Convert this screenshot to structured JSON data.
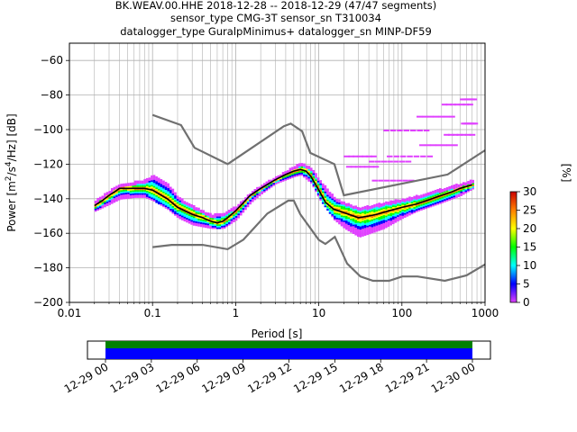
{
  "title_lines": [
    "BK.WEAV.00.HHE   2018-12-28 -- 2018-12-29  (47/47 segments)",
    "sensor_type CMG-3T sensor_sn T310034",
    "datalogger_type GuralpMinimus+ datalogger_sn MINP-DF59"
  ],
  "chart_data": {
    "type": "heatmap",
    "xlabel": "Period [s]",
    "ylabel": "Power [m²/s⁴/Hz] [dB]",
    "xscale": "log",
    "xlim": [
      0.01,
      1000
    ],
    "ylim": [
      -200,
      -50
    ],
    "x_tick_labels": [
      "0.01",
      "0.1",
      "1",
      "10",
      "100",
      "1000"
    ],
    "y_ticks": [
      -200,
      -180,
      -160,
      -140,
      -120,
      -100,
      -80,
      -60
    ],
    "grid": true,
    "colorbar": {
      "label": "[%]",
      "range": [
        0,
        30
      ],
      "ticks": [
        0,
        5,
        10,
        15,
        20,
        25,
        30
      ],
      "colors": [
        "#ffffff",
        "#e040ff",
        "#0000ff",
        "#00ffff",
        "#00ff00",
        "#ffff00",
        "#ff8000",
        "#cc0000"
      ]
    },
    "noise_models": {
      "color": "#707070",
      "high": {
        "x": [
          0.1,
          0.22,
          0.32,
          0.8,
          3.8,
          4.6,
          6.3,
          7.9,
          15.4,
          20,
          354.8,
          1000
        ],
        "y": [
          -91.5,
          -97.4,
          -110.5,
          -120,
          -98,
          -96.5,
          -101,
          -113.5,
          -120,
          -138,
          -126,
          -112
        ]
      },
      "low": {
        "x": [
          0.1,
          0.17,
          0.4,
          0.8,
          1.24,
          2.4,
          4.3,
          5,
          6,
          10,
          12,
          15.6,
          21.9,
          31.6,
          45,
          70,
          101,
          154,
          328,
          600,
          1000
        ],
        "y": [
          -168,
          -166.7,
          -166.7,
          -169.2,
          -163.7,
          -148.6,
          -141.1,
          -141.1,
          -149,
          -163.8,
          -166.2,
          -162.1,
          -177.5,
          -185,
          -187.5,
          -187.5,
          -185,
          -185,
          -187.5,
          -184.4,
          -178
        ]
      }
    },
    "mode_curve": {
      "color": "#000000",
      "x": [
        0.02,
        0.025,
        0.03,
        0.035,
        0.04,
        0.05,
        0.06,
        0.08,
        0.1,
        0.15,
        0.2,
        0.3,
        0.4,
        0.5,
        0.6,
        0.7,
        0.8,
        1,
        1.2,
        1.5,
        2,
        3,
        4,
        5,
        6,
        7,
        8,
        10,
        12,
        15,
        20,
        30,
        40,
        50,
        70,
        100,
        150,
        200,
        300,
        400,
        500,
        700
      ],
      "y": [
        -144,
        -141,
        -138,
        -136,
        -134,
        -134,
        -134,
        -134,
        -135,
        -140,
        -145,
        -149,
        -151,
        -153,
        -154,
        -153,
        -151,
        -147,
        -143,
        -138,
        -134,
        -129,
        -126,
        -124,
        -123,
        -124,
        -127,
        -135,
        -142,
        -146,
        -148,
        -151,
        -150,
        -149,
        -147,
        -145,
        -143,
        -141,
        -138,
        -136,
        -134,
        -132
      ]
    },
    "density_band": {
      "x": [
        0.02,
        0.03,
        0.04,
        0.06,
        0.08,
        0.1,
        0.15,
        0.2,
        0.3,
        0.5,
        0.7,
        1,
        1.5,
        2,
        3,
        5,
        6,
        8,
        10,
        15,
        20,
        30,
        40,
        60,
        100,
        150,
        200,
        300,
        500,
        700
      ],
      "upper": [
        -141,
        -135,
        -131,
        -130,
        -129,
        -126,
        -131,
        -139,
        -144,
        -149,
        -148,
        -144,
        -136,
        -132,
        -127,
        -121,
        -119,
        -122,
        -129,
        -139,
        -142,
        -145,
        -144,
        -142,
        -140,
        -138,
        -136,
        -134,
        -131,
        -129
      ],
      "lower": [
        -147,
        -143,
        -140,
        -139,
        -139,
        -141,
        -146,
        -151,
        -155,
        -157,
        -157,
        -152,
        -142,
        -137,
        -131,
        -127,
        -126,
        -131,
        -140,
        -152,
        -157,
        -162,
        -160,
        -157,
        -151,
        -147,
        -145,
        -142,
        -138,
        -134
      ]
    },
    "outliers": [
      {
        "x0": 20,
        "x1": 45,
        "y0": -115,
        "y1": -127
      },
      {
        "x0": 40,
        "x1": 120,
        "y0": -118,
        "y1": -140
      },
      {
        "x0": 60,
        "x1": 200,
        "y0": -100,
        "y1": -130
      },
      {
        "x0": 150,
        "x1": 400,
        "y0": -92,
        "y1": -125
      },
      {
        "x0": 300,
        "x1": 650,
        "y0": -85,
        "y1": -120
      },
      {
        "x0": 500,
        "x1": 700,
        "y0": -82,
        "y1": -110
      }
    ]
  },
  "timeline": {
    "tick_labels": [
      "12-29 00",
      "12-29 03",
      "12-29 06",
      "12-29 09",
      "12-29 12",
      "12-29 15",
      "12-29 18",
      "12-29 21",
      "12-30 00"
    ],
    "data_color": "#008000",
    "gap_color": "#0000ff"
  }
}
